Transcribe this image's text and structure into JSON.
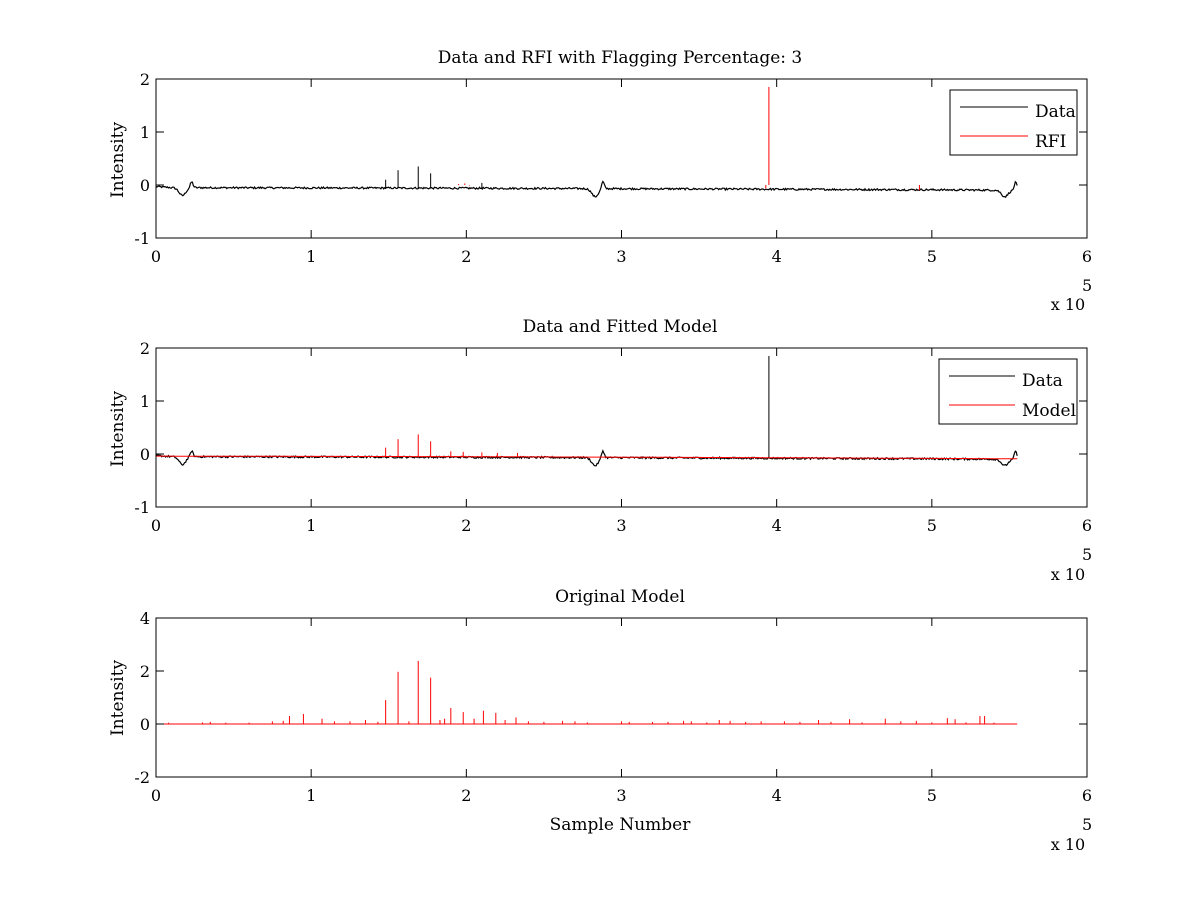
{
  "chart_data": [
    {
      "type": "line",
      "title": "Data and RFI with Flagging Percentage: 3",
      "xlabel": "",
      "ylabel": "Intensity",
      "xlim": [
        0,
        6
      ],
      "ylim": [
        -1,
        2
      ],
      "x_ticks": [
        "0",
        "1",
        "2",
        "3",
        "4",
        "5",
        "6"
      ],
      "y_ticks": [
        "-1",
        "0",
        "1",
        "2"
      ],
      "x_multiplier": {
        "base": "x 10",
        "exponent": "5"
      },
      "legend": {
        "placement": "top-right",
        "entries": [
          {
            "label": "Data",
            "color": "#000000"
          },
          {
            "label": "RFI",
            "color": "#ff0000"
          }
        ]
      },
      "series": [
        {
          "name": "Data",
          "color": "#000000",
          "baseline": [
            [
              0,
              -0.03
            ],
            [
              0.1,
              -0.05
            ],
            [
              2.0,
              -0.06
            ],
            [
              3.0,
              -0.07
            ],
            [
              4.0,
              -0.08
            ],
            [
              5.0,
              -0.09
            ],
            [
              5.55,
              -0.1
            ]
          ],
          "dips": [
            [
              0.17,
              -0.2
            ],
            [
              2.83,
              -0.22
            ],
            [
              5.47,
              -0.22
            ]
          ],
          "bumps": [
            [
              0.23,
              0.06
            ],
            [
              2.88,
              0.07
            ],
            [
              5.54,
              0.05
            ]
          ],
          "spikes": [
            [
              1.48,
              0.1
            ],
            [
              1.56,
              0.28
            ],
            [
              1.69,
              0.35
            ],
            [
              1.77,
              0.22
            ],
            [
              2.1,
              0.04
            ]
          ]
        },
        {
          "name": "RFI",
          "color": "#ff0000",
          "spikes": [
            [
              1.95,
              0.02
            ],
            [
              1.97,
              0.0
            ],
            [
              1.99,
              0.03
            ],
            [
              2.02,
              -0.01
            ],
            [
              2.04,
              0.0
            ],
            [
              3.93,
              -0.06
            ],
            [
              3.95,
              1.85
            ],
            [
              4.92,
              -0.1
            ]
          ]
        }
      ]
    },
    {
      "type": "line",
      "title": "Data and Fitted Model",
      "xlabel": "",
      "ylabel": "Intensity",
      "xlim": [
        0,
        6
      ],
      "ylim": [
        -1,
        2
      ],
      "x_ticks": [
        "0",
        "1",
        "2",
        "3",
        "4",
        "5",
        "6"
      ],
      "y_ticks": [
        "-1",
        "0",
        "1",
        "2"
      ],
      "x_multiplier": {
        "base": "x 10",
        "exponent": "5"
      },
      "legend": {
        "placement": "top-right",
        "entries": [
          {
            "label": "Data",
            "color": "#000000"
          },
          {
            "label": "Model",
            "color": "#ff0000"
          }
        ]
      },
      "series": [
        {
          "name": "Data",
          "color": "#000000",
          "baseline": [
            [
              0,
              -0.03
            ],
            [
              0.1,
              -0.05
            ],
            [
              2.0,
              -0.06
            ],
            [
              3.0,
              -0.07
            ],
            [
              4.0,
              -0.08
            ],
            [
              5.0,
              -0.09
            ],
            [
              5.55,
              -0.1
            ]
          ],
          "dips": [
            [
              0.17,
              -0.2
            ],
            [
              2.83,
              -0.22
            ],
            [
              5.47,
              -0.22
            ]
          ],
          "bumps": [
            [
              0.23,
              0.06
            ],
            [
              2.88,
              0.07
            ],
            [
              5.54,
              0.05
            ]
          ],
          "spikes": [
            [
              3.95,
              1.85
            ]
          ]
        },
        {
          "name": "Model",
          "color": "#ff0000",
          "baseline": [
            [
              0,
              -0.04
            ],
            [
              2.0,
              -0.05
            ],
            [
              4.0,
              -0.07
            ],
            [
              5.55,
              -0.09
            ]
          ],
          "spikes": [
            [
              1.48,
              0.12
            ],
            [
              1.56,
              0.28
            ],
            [
              1.69,
              0.37
            ],
            [
              1.77,
              0.24
            ],
            [
              1.9,
              0.05
            ],
            [
              1.98,
              0.04
            ],
            [
              2.1,
              0.03
            ],
            [
              2.2,
              0.02
            ],
            [
              2.33,
              0.02
            ]
          ]
        }
      ]
    },
    {
      "type": "line",
      "title": "Original Model",
      "xlabel": "Sample Number",
      "ylabel": "Intensity",
      "xlim": [
        0,
        6
      ],
      "ylim": [
        -2,
        4
      ],
      "x_ticks": [
        "0",
        "1",
        "2",
        "3",
        "4",
        "5",
        "6"
      ],
      "y_ticks": [
        "-2",
        "0",
        "2",
        "4"
      ],
      "x_multiplier": {
        "base": "x 10",
        "exponent": "5"
      },
      "series": [
        {
          "color": "#ff0000",
          "baseline": [
            [
              0,
              0
            ],
            [
              5.55,
              0
            ]
          ],
          "spikes": [
            [
              0.08,
              0.05
            ],
            [
              0.3,
              0.06
            ],
            [
              0.35,
              0.08
            ],
            [
              0.45,
              0.05
            ],
            [
              0.6,
              0.05
            ],
            [
              0.75,
              0.1
            ],
            [
              0.82,
              0.12
            ],
            [
              0.86,
              0.3
            ],
            [
              0.95,
              0.38
            ],
            [
              1.07,
              0.2
            ],
            [
              1.15,
              0.1
            ],
            [
              1.25,
              0.1
            ],
            [
              1.35,
              0.15
            ],
            [
              1.43,
              0.08
            ],
            [
              1.48,
              0.9
            ],
            [
              1.56,
              1.97
            ],
            [
              1.63,
              0.1
            ],
            [
              1.69,
              2.38
            ],
            [
              1.77,
              1.75
            ],
            [
              1.83,
              0.15
            ],
            [
              1.86,
              0.2
            ],
            [
              1.9,
              0.6
            ],
            [
              1.98,
              0.45
            ],
            [
              2.05,
              0.2
            ],
            [
              2.11,
              0.5
            ],
            [
              2.19,
              0.42
            ],
            [
              2.25,
              0.15
            ],
            [
              2.32,
              0.25
            ],
            [
              2.4,
              0.1
            ],
            [
              2.5,
              0.08
            ],
            [
              2.62,
              0.12
            ],
            [
              2.7,
              0.1
            ],
            [
              2.78,
              0.06
            ],
            [
              3.0,
              0.1
            ],
            [
              3.05,
              0.08
            ],
            [
              3.2,
              0.08
            ],
            [
              3.3,
              0.08
            ],
            [
              3.4,
              0.12
            ],
            [
              3.45,
              0.1
            ],
            [
              3.55,
              0.06
            ],
            [
              3.63,
              0.15
            ],
            [
              3.7,
              0.12
            ],
            [
              3.8,
              0.08
            ],
            [
              3.9,
              0.1
            ],
            [
              4.05,
              0.1
            ],
            [
              4.15,
              0.08
            ],
            [
              4.27,
              0.15
            ],
            [
              4.35,
              0.08
            ],
            [
              4.47,
              0.18
            ],
            [
              4.55,
              0.06
            ],
            [
              4.7,
              0.2
            ],
            [
              4.8,
              0.1
            ],
            [
              4.9,
              0.12
            ],
            [
              5.0,
              0.06
            ],
            [
              5.1,
              0.22
            ],
            [
              5.15,
              0.18
            ],
            [
              5.22,
              0.06
            ],
            [
              5.31,
              0.3
            ],
            [
              5.34,
              0.3
            ],
            [
              5.4,
              0.05
            ]
          ]
        }
      ]
    }
  ]
}
